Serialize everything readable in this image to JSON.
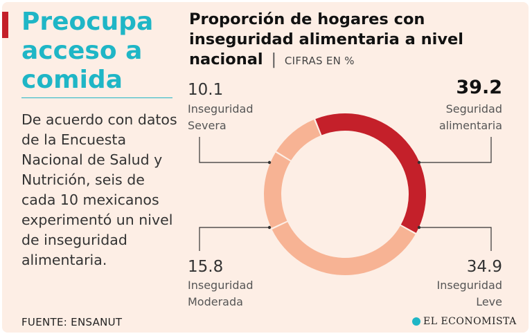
{
  "headline": "Preocupa acceso a comida",
  "body": "De acuerdo con datos de la Encuesta Nacional de Salud y Nutrición, seis de cada 10 mexicanos experimentó un nivel de inseguridad alimentaria.",
  "source": "FUENTE: ENSANUT",
  "logo_text": "EL ECONOMISTA",
  "colors": {
    "accent": "#c4202a",
    "headline": "#1fb6c6",
    "background": "#fdeee5",
    "highlight_slice": "#c4202a",
    "other_slices": "#f7b394"
  },
  "chart_data": {
    "type": "pie",
    "variant": "donut",
    "title": "Proporción de hogares con inseguridad alimentaria a nivel nacional",
    "title_separator": "|",
    "subtitle": "CIFRAS EN %",
    "slices": [
      {
        "label": "Seguridad alimentaria",
        "label_lines": [
          "Seguridad",
          "alimentaria"
        ],
        "value": 39.2,
        "value_text": "39.2",
        "highlight": true
      },
      {
        "label": "Inseguridad Leve",
        "label_lines": [
          "Inseguridad",
          "Leve"
        ],
        "value": 34.9,
        "value_text": "34.9",
        "highlight": false
      },
      {
        "label": "Inseguridad Moderada",
        "label_lines": [
          "Inseguridad",
          "Moderada"
        ],
        "value": 15.8,
        "value_text": "15.8",
        "highlight": false
      },
      {
        "label": "Inseguridad Severa",
        "label_lines": [
          "Inseguridad",
          "Severa"
        ],
        "value": 10.1,
        "value_text": "10.1",
        "highlight": false
      }
    ]
  }
}
